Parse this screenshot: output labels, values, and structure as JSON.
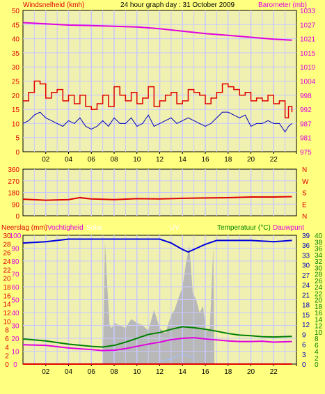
{
  "title": "24 hour graph day : 31 October 2009",
  "colors": {
    "background": "#ffff80",
    "plot_bg": "#f0f0b0",
    "grid": "#c8c8ff",
    "wind": "#e00000",
    "wind_avg": "#0000c0",
    "barometer": "#e000e0",
    "direction": "#e00000",
    "humidity": "#0000e0",
    "temperature": "#008000",
    "dewpoint": "#e000e0",
    "solar": "#b8b8b8",
    "uv": "#a0c0ff",
    "label_red": "#e00000",
    "label_magenta": "#e000e0",
    "label_green": "#008000",
    "label_blue": "#0000c0"
  },
  "chart_data": [
    {
      "type": "line",
      "name": "wind-barometer",
      "ylabel": "Windsnelheid (kmh)",
      "ylabel_right": "Barometer (mb)",
      "ylim": [
        0,
        50
      ],
      "ylim_right": [
        975,
        1033
      ],
      "yticks": [
        "0",
        "5",
        "10",
        "15",
        "20",
        "25",
        "30",
        "35",
        "40",
        "45",
        "50"
      ],
      "yticks_right": [
        "975",
        "981",
        "987",
        "992",
        "998",
        "1004",
        "1010",
        "1015",
        "1021",
        "1027",
        "1033"
      ],
      "xticks": [
        "02",
        "04",
        "06",
        "08",
        "10",
        "12",
        "14",
        "16",
        "18",
        "20",
        "22",
        ""
      ],
      "xlim": [
        0,
        24
      ],
      "grid": true,
      "series": [
        {
          "name": "gust",
          "x": [
            0,
            0.5,
            1,
            1.5,
            2,
            2.5,
            3,
            3.5,
            4,
            4.5,
            5,
            5.5,
            6,
            6.5,
            7,
            7.5,
            8,
            8.5,
            9,
            9.5,
            10,
            10.5,
            11,
            11.5,
            12,
            12.5,
            13,
            13.5,
            14,
            14.5,
            15,
            15.5,
            16,
            16.5,
            17,
            17.5,
            18,
            18.5,
            19,
            19.5,
            20,
            20.5,
            21,
            21.5,
            22,
            22.5,
            23,
            23.3,
            23.6
          ],
          "values": [
            18,
            21,
            25,
            24,
            19,
            21,
            22,
            18,
            20,
            17,
            20,
            16,
            15,
            17,
            20,
            16,
            23,
            20,
            18,
            21,
            17,
            19,
            23,
            16,
            18,
            20,
            21,
            17,
            18,
            22,
            21,
            20,
            17,
            19,
            21,
            24,
            23,
            22,
            20,
            21,
            18,
            19,
            18,
            20,
            17,
            18,
            12,
            16,
            14
          ]
        },
        {
          "name": "average",
          "x": [
            0,
            0.5,
            1,
            1.5,
            2,
            2.5,
            3,
            3.5,
            4,
            4.5,
            5,
            5.5,
            6,
            6.5,
            7,
            7.5,
            8,
            8.5,
            9,
            9.5,
            10,
            10.5,
            11,
            11.5,
            12,
            12.5,
            13,
            13.5,
            14,
            14.5,
            15,
            15.5,
            16,
            16.5,
            17,
            17.5,
            18,
            18.5,
            19,
            19.5,
            20,
            20.5,
            21,
            21.5,
            22,
            22.5,
            23,
            23.3,
            23.6
          ],
          "values": [
            10,
            11,
            13,
            14,
            12,
            11,
            10,
            9,
            11,
            10,
            12,
            9,
            8,
            9,
            11,
            9,
            12,
            10,
            10,
            12,
            9,
            10,
            13,
            9,
            10,
            11,
            12,
            10,
            11,
            12,
            11,
            10,
            9,
            10,
            12,
            14,
            14,
            13,
            12,
            13,
            9,
            10,
            10,
            11,
            10,
            10,
            7,
            9,
            10
          ]
        },
        {
          "name": "barometer",
          "x": [
            0,
            2,
            4,
            6,
            8,
            10,
            12,
            14,
            16,
            18,
            20,
            22,
            23.6
          ],
          "values": [
            1028,
            1027.5,
            1027,
            1026.8,
            1026.5,
            1026.2,
            1025.5,
            1024.5,
            1023.5,
            1022.8,
            1022,
            1021.2,
            1020.8
          ]
        }
      ]
    },
    {
      "type": "line",
      "name": "wind-direction",
      "ylim": [
        0,
        360
      ],
      "yticks": [
        "0",
        "90",
        "180",
        "270",
        "360"
      ],
      "yticks_right": [
        "N",
        "E",
        "S",
        "W",
        "N"
      ],
      "xlim": [
        0,
        24
      ],
      "series": [
        {
          "name": "direction",
          "x": [
            0,
            2,
            4,
            5,
            6,
            8,
            10,
            12,
            14,
            16,
            18,
            20,
            22,
            23.6
          ],
          "values": [
            128,
            120,
            125,
            140,
            130,
            125,
            132,
            130,
            135,
            138,
            140,
            145,
            145,
            148
          ]
        }
      ]
    },
    {
      "type": "area",
      "name": "rain-humidity-temperature",
      "labels": {
        "rain": "Neerslag (mm)",
        "humidity": "Vochtigheid",
        "solar": "Solar",
        "uv": "UV",
        "temperature": "Temperatuur (°C)",
        "dewpoint": "Dauwpunt"
      },
      "yticks_rain": [
        "0",
        "2",
        "4",
        "6",
        "8",
        "10",
        "12",
        "14",
        "16",
        "18",
        "20",
        "22",
        "24",
        "26",
        "28",
        "30"
      ],
      "yticks_humidity": [
        "0",
        "10",
        "20",
        "30",
        "40",
        "50",
        "60",
        "70",
        "80",
        "90",
        "100"
      ],
      "yticks_temp": [
        "0",
        "2",
        "4",
        "6",
        "8",
        "10",
        "12",
        "14",
        "16",
        "18",
        "20",
        "22",
        "24",
        "26",
        "28",
        "30",
        "32",
        "34",
        "36",
        "38",
        "40"
      ],
      "yticks_uv": [
        "0",
        "3",
        "6",
        "9",
        "12",
        "15",
        "18",
        "21",
        "24",
        "27",
        "30",
        "33",
        "36",
        "39"
      ],
      "xticks": [
        "02",
        "04",
        "06",
        "08",
        "10",
        "12",
        "14",
        "16",
        "18",
        "20",
        "22",
        ""
      ],
      "xlim": [
        0,
        24
      ],
      "grid": true,
      "series": [
        {
          "name": "humidity",
          "x": [
            0,
            2,
            4,
            6,
            8,
            10,
            12,
            13,
            14,
            14.5,
            15,
            16,
            17,
            18,
            20,
            22,
            23.6
          ],
          "values": [
            94,
            95,
            97,
            97,
            97,
            97,
            97,
            94,
            89,
            87,
            89,
            93,
            96,
            96,
            96,
            95,
            96
          ]
        },
        {
          "name": "temperature",
          "x": [
            0,
            2,
            4,
            6,
            7,
            8,
            9,
            10,
            11,
            12,
            13,
            14,
            15,
            16,
            17,
            18,
            19,
            20,
            21,
            22,
            23.6
          ],
          "values": [
            7.8,
            7.2,
            6.2,
            5.5,
            5.3,
            5.8,
            6.8,
            8.0,
            9.2,
            9.8,
            10.8,
            11.6,
            11.3,
            10.8,
            10.2,
            9.5,
            9.0,
            8.8,
            8.5,
            8.4,
            8.6
          ]
        },
        {
          "name": "dewpoint",
          "x": [
            0,
            2,
            4,
            6,
            7,
            8,
            9,
            10,
            11,
            12,
            13,
            14,
            15,
            16,
            17,
            18,
            19,
            20,
            21,
            22,
            23.6
          ],
          "values": [
            6.0,
            5.8,
            5.0,
            4.5,
            4.2,
            4.3,
            4.8,
            5.5,
            6.2,
            6.8,
            7.6,
            8.0,
            8.2,
            7.8,
            7.5,
            7.2,
            7.0,
            7.0,
            7.1,
            6.8,
            7.0
          ]
        },
        {
          "name": "solar",
          "x": [
            7,
            7.2,
            7.4,
            7.6,
            7.8,
            8,
            8.5,
            9,
            9.5,
            10,
            10.5,
            11,
            11.5,
            12,
            12.5,
            13,
            13.3,
            13.6,
            14,
            14.3,
            14.6,
            14.9,
            15.2,
            15.5,
            15.8,
            16.1,
            16.4,
            16.7,
            16.8
          ],
          "values": [
            0,
            95,
            60,
            30,
            28,
            32,
            30,
            28,
            35,
            32,
            30,
            26,
            42,
            28,
            24,
            38,
            42,
            50,
            60,
            78,
            92,
            55,
            50,
            40,
            45,
            25,
            28,
            90,
            0
          ]
        },
        {
          "name": "uv",
          "x": [
            12,
            13,
            14,
            15
          ],
          "values": [
            0.2,
            0.4,
            0.8,
            0.5
          ]
        },
        {
          "name": "rain",
          "x": [
            0,
            23.6
          ],
          "values": [
            0,
            0
          ]
        }
      ]
    }
  ]
}
